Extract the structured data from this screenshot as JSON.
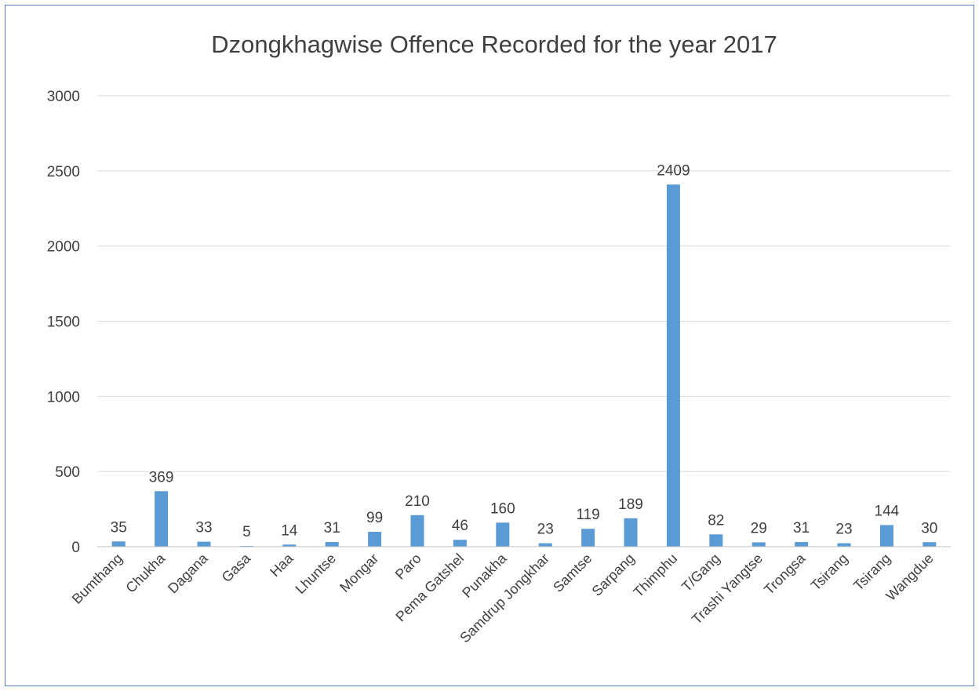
{
  "chart_data": {
    "type": "bar",
    "title": "Dzongkhagwise Offence Recorded for the year 2017",
    "xlabel": "",
    "ylabel": "",
    "ylim": [
      0,
      3000
    ],
    "yticks": [
      0,
      500,
      1000,
      1500,
      2000,
      2500,
      3000
    ],
    "grid": true,
    "legend": "none",
    "bar_color": "#5b9bd5",
    "categories": [
      "Bumthang",
      "Chukha",
      "Dagana",
      "Gasa",
      "Haa",
      "Lhuntse",
      "Mongar",
      "Paro",
      "Pema Gatshel",
      "Punakha",
      "Samdrup Jongkhar",
      "Samtse",
      "Sarpang",
      "Thimphu",
      "T/Gang",
      "Trashi Yangtse",
      "Trongsa",
      "Tsirang",
      "Tsirang",
      "Wangdue"
    ],
    "values": [
      35,
      369,
      33,
      5,
      14,
      31,
      99,
      210,
      46,
      160,
      23,
      119,
      189,
      2409,
      82,
      29,
      31,
      23,
      144,
      30
    ]
  }
}
